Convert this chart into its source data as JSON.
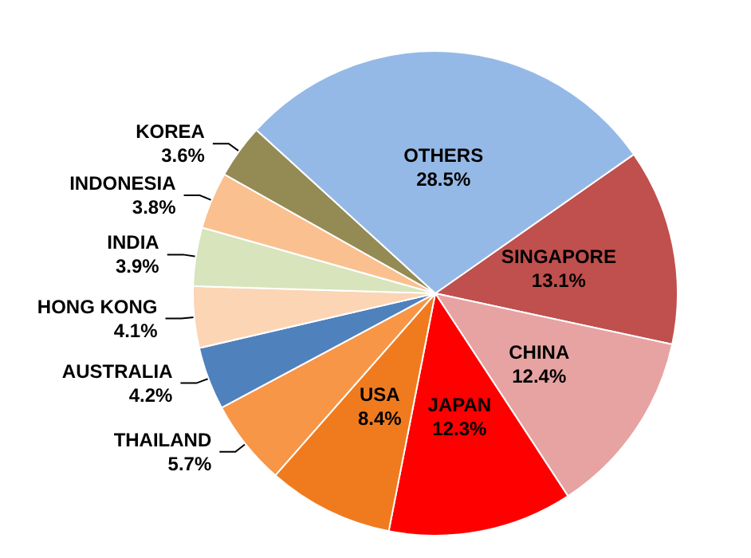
{
  "chart_data": {
    "type": "pie",
    "categories": [
      "SINGAPORE",
      "CHINA",
      "JAPAN",
      "USA",
      "THAILAND",
      "AUSTRALIA",
      "HONG KONG",
      "INDIA",
      "INDONESIA",
      "KOREA",
      "OTHERS"
    ],
    "values": [
      13.1,
      12.4,
      12.3,
      8.4,
      5.7,
      4.2,
      4.1,
      3.9,
      3.8,
      3.6,
      28.5
    ],
    "value_labels": [
      "13.1%",
      "12.4%",
      "12.3%",
      "8.4%",
      "5.7%",
      "4.2%",
      "4.1%",
      "3.9%",
      "3.8%",
      "3.6%",
      "28.5%"
    ],
    "colors": [
      "#c0504d",
      "#e6a3a2",
      "#ff0000",
      "#f07b1e",
      "#f79646",
      "#4f81bd",
      "#fcd5b4",
      "#d7e4bc",
      "#fac090",
      "#948a54",
      "#95b9e6"
    ],
    "legend": false
  }
}
